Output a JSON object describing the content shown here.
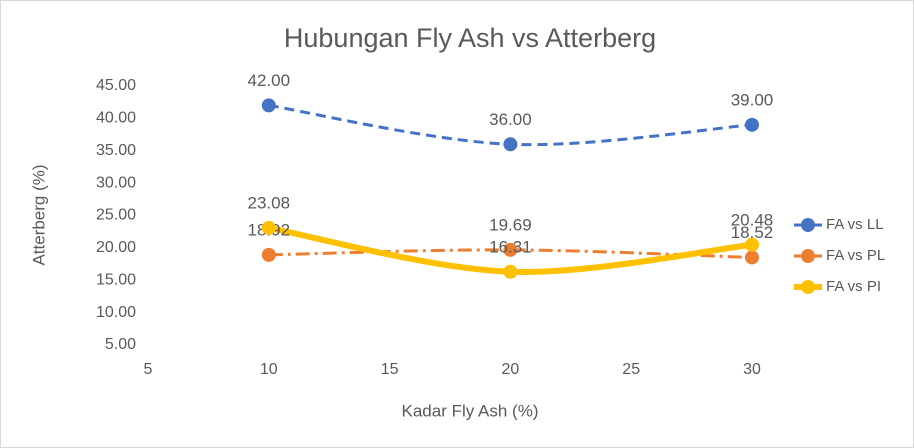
{
  "chart_data": {
    "type": "line",
    "title": "Hubungan Fly Ash vs Atterberg",
    "x_label": "Kadar Fly Ash (%)",
    "y_label": "Atterberg (%)",
    "x": [
      10,
      20,
      30
    ],
    "series": [
      {
        "name": "FA vs LL",
        "color": "#4472c4",
        "dash": "10,6",
        "width": 3,
        "values": [
          42,
          36,
          39
        ],
        "value_labels": [
          "42.00",
          "36.00",
          "39.00"
        ]
      },
      {
        "name": "FA vs PL",
        "color": "#ed7d31",
        "dash": "14,5,3,5",
        "width": 3,
        "values": [
          18.92,
          19.69,
          18.52
        ],
        "value_labels": [
          "18.92",
          "19.69",
          "18.52"
        ]
      },
      {
        "name": "FA vs PI",
        "color": "#ffc000",
        "dash": "none",
        "width": 6,
        "values": [
          23.08,
          16.31,
          20.48
        ],
        "value_labels": [
          "23.08",
          "16.31",
          "20.48"
        ]
      }
    ],
    "xlim": [
      5,
      30
    ],
    "xticks": [
      5,
      10,
      15,
      20,
      25,
      30
    ],
    "ylim": [
      5,
      45
    ],
    "yticks": [
      {
        "value": 5,
        "label": "5.00"
      },
      {
        "value": 10,
        "label": "10.00"
      },
      {
        "value": 15,
        "label": "15.00"
      },
      {
        "value": 20,
        "label": "20.00"
      },
      {
        "value": 25,
        "label": "25.00"
      },
      {
        "value": 30,
        "label": "30.00"
      },
      {
        "value": 35,
        "label": "35.00"
      },
      {
        "value": 40,
        "label": "40.00"
      },
      {
        "value": 45,
        "label": "45.00"
      }
    ],
    "legend": "right",
    "grid": false
  }
}
